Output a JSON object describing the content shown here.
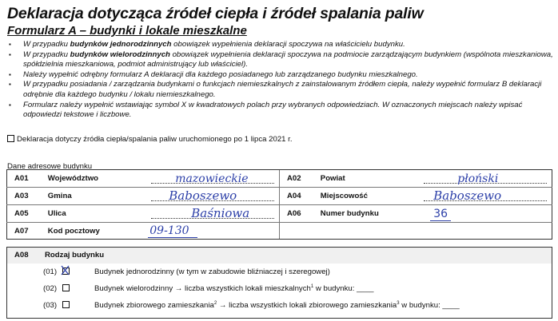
{
  "title": "Deklaracja dotycząca źródeł ciepła i źródeł spalania paliw",
  "subtitle": "Formularz A – budynki i lokale mieszkalne",
  "notes": [
    {
      "pre": "W przypadku ",
      "bold": "budynków jednorodzinnych",
      "post": " obowiązek wypełnienia deklaracji spoczywa na właścicielu budynku."
    },
    {
      "pre": "W przypadku ",
      "bold": "budynków wielorodzinnych",
      "post": " obowiązek wypełnienia deklaracji spoczywa na podmiocie zarządzającym budynkiem (wspólnota mieszkaniowa, spółdzielnia mieszkaniowa, podmiot administrujący lub właściciel)."
    },
    {
      "pre": "Należy wypełnić odrębny formularz A deklaracji dla każdego posiadanego lub zarządzanego budynku mieszkalnego.",
      "bold": "",
      "post": ""
    },
    {
      "pre": "W przypadku posiadania / zarządzania budynkami o funkcjach niemieszkalnych z zainstalowanym źródłem ciepła, należy wypełnić formularz B deklaracji odrębnie dla każdego budynku / lokalu niemieszkalnego.",
      "bold": "",
      "post": ""
    },
    {
      "pre": "Formularz należy wypełnić wstawiając symbol X w kwadratowych polach przy wybranych odpowiedziach. W oznaczonych miejscach należy wpisać odpowiedzi tekstowe i liczbowe.",
      "bold": "",
      "post": ""
    }
  ],
  "declaration_checkbox": {
    "label": "Deklaracja dotyczy źródła ciepła/spalania paliw uruchomionego po 1 lipca 2021 r.",
    "checked": false
  },
  "address_section_label": "Dane adresowe budynku",
  "address": [
    {
      "code": "A01",
      "label": "Województwo",
      "value": "mazowieckie"
    },
    {
      "code": "A02",
      "label": "Powiat",
      "value": "płoński"
    },
    {
      "code": "A03",
      "label": "Gmina",
      "value": "Baboszewo"
    },
    {
      "code": "A04",
      "label": "Miejscowość",
      "value": "Baboszewo"
    },
    {
      "code": "A05",
      "label": "Ulica",
      "value": "Baśniowa"
    },
    {
      "code": "A06",
      "label": "Numer budynku",
      "value": "36"
    },
    {
      "code": "A07",
      "label": "Kod pocztowy",
      "value": "09-130"
    }
  ],
  "building_type": {
    "code": "A08",
    "label": "Rodzaj budynku",
    "options": [
      {
        "num": "(01)",
        "text": "Budynek jednorodzinny (w tym w zabudowie bliźniaczej i szeregowej)",
        "checked": true,
        "sup1": "",
        "mid": "",
        "sup2": "",
        "tail": ""
      },
      {
        "num": "(02)",
        "text": "Budynek wielorodzinny → liczba wszystkich lokali mieszkalnych",
        "checked": false,
        "sup1": "1",
        "mid": " w budynku: ____",
        "sup2": "",
        "tail": ""
      },
      {
        "num": "(03)",
        "text": "Budynek zbiorowego zamieszkania",
        "checked": false,
        "sup1": "2",
        "mid": " → liczba wszystkich lokali zbiorowego zamieszkania",
        "sup2": "3",
        "tail": " w budynku: ____"
      }
    ]
  },
  "colors": {
    "handwriting": "#2c3fa8"
  }
}
